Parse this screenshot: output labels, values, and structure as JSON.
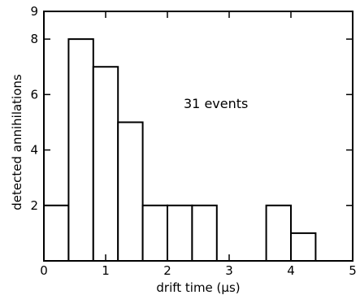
{
  "chart_data": {
    "type": "bar",
    "xlabel": "drift time  (μs)",
    "ylabel": "detected annihilations",
    "annotation": "31 events",
    "xlim": [
      0,
      5
    ],
    "ylim": [
      0,
      9
    ],
    "xticks": [
      0,
      1,
      2,
      3,
      4,
      5
    ],
    "yticks": [
      2,
      4,
      6,
      8,
      9
    ],
    "bin_width": 0.4,
    "bins": [
      {
        "x0": 0.0,
        "x1": 0.4,
        "value": 2
      },
      {
        "x0": 0.4,
        "x1": 0.8,
        "value": 8
      },
      {
        "x0": 0.8,
        "x1": 1.2,
        "value": 7
      },
      {
        "x0": 1.2,
        "x1": 1.6,
        "value": 5
      },
      {
        "x0": 1.6,
        "x1": 2.0,
        "value": 2
      },
      {
        "x0": 2.0,
        "x1": 2.4,
        "value": 2
      },
      {
        "x0": 2.4,
        "x1": 2.8,
        "value": 2
      },
      {
        "x0": 3.6,
        "x1": 4.0,
        "value": 2
      },
      {
        "x0": 4.0,
        "x1": 4.4,
        "value": 1
      }
    ],
    "grid": false
  }
}
